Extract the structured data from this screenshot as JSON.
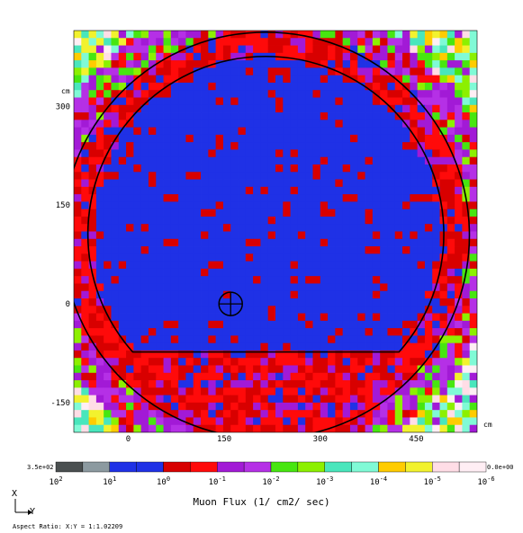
{
  "chart_data": {
    "type": "heatmap",
    "title": "Muon Flux  (1/ cm2/ sec)",
    "x_axis": {
      "unit": "cm",
      "ticks": [
        0,
        150,
        300,
        450
      ],
      "range": [
        -85,
        545
      ]
    },
    "y_axis": {
      "unit": "cm",
      "ticks": [
        300,
        150,
        0,
        -150
      ],
      "range": [
        -195,
        415
      ]
    },
    "colorbar": {
      "max_label": "3.5e+02",
      "min_label": "0.0e+00",
      "decades": [
        "10^2",
        "10^1",
        "10^0",
        "10^-1",
        "10^-2",
        "10^-3",
        "10^-4",
        "10^-5",
        "10^-6"
      ],
      "colors": [
        "#4a4f50",
        "#8c9aa0",
        "#1f31e6",
        "#1f31e6",
        "#d80000",
        "#ff0a0a",
        "#a21ad6",
        "#b530e6",
        "#47e610",
        "#8cf000",
        "#49e6bc",
        "#80fad6",
        "#ffcc00",
        "#f2f22e",
        "#ffdde6",
        "#ffeef4"
      ]
    },
    "geometry": {
      "outer_circle": {
        "center_y": 215,
        "center_x": 104,
        "radius": 318
      },
      "inner_circle": {
        "center_y": 215,
        "center_x": 106,
        "radius": 278
      },
      "floor_x": -73,
      "detector_marker": {
        "y": 160,
        "x": 0
      }
    },
    "regions": [
      {
        "name": "inner",
        "dominant_decade": "10^0 to 10^1"
      },
      {
        "name": "rim",
        "dominant_decade": "10^-1 to 10^0"
      },
      {
        "name": "outer",
        "dominant_decade": "10^-2 to 10^-1"
      },
      {
        "name": "corners",
        "dominant_decade": "10^-3 to 10^-6"
      }
    ]
  },
  "axis_letters": {
    "vertical": "X",
    "horizontal": "Y"
  },
  "aspect_ratio": "Aspect Ratio: X:Y = 1:1.02209"
}
